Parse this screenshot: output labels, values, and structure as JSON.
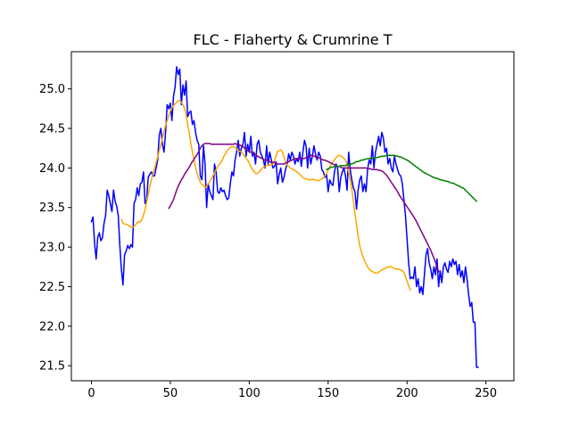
{
  "chart_data": {
    "type": "line",
    "title": "FLC - Flaherty & Crumrine T",
    "xlabel": "",
    "ylabel": "",
    "xlim": [
      -12.7,
      267.7
    ],
    "ylim": [
      21.31,
      25.47
    ],
    "xticks": [
      0,
      50,
      100,
      150,
      200,
      250
    ],
    "xtick_labels": [
      "0",
      "50",
      "100",
      "150",
      "200",
      "250"
    ],
    "yticks": [
      21.5,
      22.0,
      22.5,
      23.0,
      23.5,
      24.0,
      24.5,
      25.0
    ],
    "ytick_labels": [
      "21.5",
      "22.0",
      "22.5",
      "23.0",
      "23.5",
      "24.0",
      "24.5",
      "25.0"
    ],
    "grid": false,
    "legend": "none",
    "series": [
      {
        "color": "#0000ff",
        "x_start": 0,
        "values": [
          23.32,
          23.38,
          23.05,
          22.85,
          23.12,
          23.18,
          23.08,
          23.12,
          23.3,
          23.4,
          23.72,
          23.65,
          23.55,
          23.45,
          23.72,
          23.58,
          23.52,
          23.4,
          23.02,
          22.72,
          22.52,
          22.9,
          22.95,
          23.02,
          22.98,
          23.03,
          23.0,
          23.55,
          23.6,
          23.75,
          23.65,
          23.8,
          23.82,
          23.95,
          23.55,
          23.6,
          23.88,
          23.92,
          23.95,
          23.9,
          23.9,
          24.0,
          24.1,
          24.42,
          24.5,
          24.3,
          24.2,
          24.45,
          24.8,
          24.75,
          24.82,
          24.6,
          24.9,
          25.02,
          25.28,
          25.18,
          25.25,
          24.8,
          25.05,
          24.92,
          25.1,
          24.65,
          24.7,
          24.72,
          24.55,
          24.6,
          24.45,
          24.35,
          24.3,
          23.9,
          23.85,
          24.28,
          24.05,
          23.5,
          23.8,
          23.7,
          23.65,
          23.6,
          24.05,
          23.95,
          23.7,
          23.68,
          23.75,
          23.7,
          23.72,
          23.65,
          23.6,
          23.62,
          23.8,
          23.95,
          23.9,
          24.1,
          24.2,
          24.35,
          24.15,
          24.25,
          24.3,
          24.45,
          24.15,
          24.3,
          24.2,
          24.4,
          24.15,
          24.2,
          24.05,
          24.3,
          24.35,
          24.2,
          24.15,
          24.1,
          24.0,
          24.28,
          24.05,
          24.2,
          24.1,
          24.0,
          24.02,
          24.08,
          23.8,
          23.92,
          24.0,
          23.82,
          23.88,
          23.98,
          24.05,
          24.18,
          24.1,
          24.2,
          24.15,
          24.05,
          24.12,
          24.08,
          24.2,
          24.02,
          24.2,
          24.35,
          24.28,
          24.0,
          24.25,
          24.05,
          24.15,
          24.28,
          24.18,
          24.1,
          24.2,
          24.15,
          23.98,
          23.95,
          23.88,
          23.92,
          23.7,
          23.85,
          23.8,
          23.78,
          23.95,
          24.05,
          24.0,
          23.7,
          23.88,
          23.95,
          24.0,
          23.9,
          23.72,
          24.2,
          23.98,
          23.85,
          23.75,
          23.7,
          23.48,
          23.72,
          23.85,
          23.9,
          23.7,
          23.8,
          23.7,
          23.98,
          24.1,
          24.05,
          24.28,
          24.0,
          24.2,
          24.3,
          24.4,
          24.28,
          24.45,
          24.38,
          24.2,
          24.25,
          24.05,
          24.12,
          24.0,
          23.95,
          24.15,
          24.05,
          23.98,
          23.92,
          23.9,
          23.8,
          23.6,
          23.4,
          23.1,
          22.8,
          22.6,
          22.62,
          22.6,
          22.75,
          22.5,
          22.6,
          22.42,
          22.5,
          22.4,
          22.65,
          22.9,
          22.98,
          22.8,
          22.72,
          22.6,
          22.75,
          22.65,
          22.85,
          22.5,
          22.7,
          22.55,
          22.75,
          22.8,
          22.72,
          22.68,
          22.82,
          22.75,
          22.85,
          22.78,
          22.82,
          22.65,
          22.78,
          22.62,
          22.7,
          22.55,
          22.75,
          22.6,
          22.4,
          22.25,
          22.3,
          22.05,
          22.05,
          21.48,
          21.48
        ]
      },
      {
        "color": "#ffa500",
        "x_start": 19,
        "values": [
          23.35,
          23.3,
          23.29,
          23.29,
          23.28,
          23.27,
          23.25,
          23.25,
          23.26,
          23.28,
          23.31,
          23.32,
          23.32,
          23.35,
          23.4,
          23.48,
          23.57,
          23.67,
          23.76,
          23.85,
          23.93,
          23.99,
          24.07,
          24.14,
          24.22,
          24.29,
          24.38,
          24.46,
          24.54,
          24.6,
          24.66,
          24.72,
          24.76,
          24.79,
          24.81,
          24.83,
          24.85,
          24.85,
          24.83,
          24.8,
          24.76,
          24.67,
          24.55,
          24.44,
          24.31,
          24.2,
          24.1,
          24.01,
          23.93,
          23.87,
          23.82,
          23.79,
          23.78,
          23.75,
          23.77,
          23.8,
          23.83,
          23.86,
          23.9,
          23.94,
          23.98,
          24.02,
          24.04,
          24.07,
          24.1,
          24.15,
          24.18,
          24.22,
          24.24,
          24.26,
          24.27,
          24.27,
          24.26,
          24.24,
          24.22,
          24.21,
          24.2,
          24.18,
          24.15,
          24.12,
          24.1,
          24.06,
          24.02,
          23.98,
          23.96,
          23.93,
          23.93,
          23.94,
          23.97,
          23.99,
          24.01,
          24.02,
          24.03,
          24.03,
          24.04,
          24.04,
          24.05,
          24.1,
          24.15,
          24.21,
          24.22,
          24.23,
          24.2,
          24.14,
          24.08,
          24.04,
          24.02,
          24.0,
          23.99,
          23.98,
          23.97,
          23.95,
          23.94,
          23.92,
          23.9,
          23.88,
          23.87,
          23.86,
          23.86,
          23.85,
          23.85,
          23.86,
          23.85,
          23.85,
          23.84,
          23.84,
          23.85,
          23.86,
          23.88,
          23.9,
          23.93,
          23.97,
          24.01,
          24.05,
          24.08,
          24.1,
          24.13,
          24.15,
          24.16,
          24.15,
          24.14,
          24.12,
          24.1,
          24.05,
          23.95,
          23.85,
          23.73,
          23.58,
          23.42,
          23.28,
          23.14,
          23.02,
          22.94,
          22.88,
          22.83,
          22.79,
          22.75,
          22.72,
          22.7,
          22.69,
          22.68,
          22.67,
          22.67,
          22.68,
          22.7,
          22.71,
          22.72,
          22.73,
          22.74,
          22.75,
          22.75,
          22.75,
          22.74,
          22.73,
          22.72,
          22.72,
          22.72,
          22.71,
          22.7,
          22.68,
          22.63,
          22.57,
          22.51,
          22.46
        ]
      },
      {
        "color": "#800080",
        "x_start": 49,
        "values": [
          23.49,
          23.52,
          23.56,
          23.6,
          23.66,
          23.72,
          23.77,
          23.81,
          23.85,
          23.88,
          23.92,
          23.95,
          23.98,
          24.01,
          24.05,
          24.08,
          24.11,
          24.14,
          24.17,
          24.21,
          24.25,
          24.28,
          24.3,
          24.31,
          24.31,
          24.31,
          24.31,
          24.3,
          24.3,
          24.3,
          24.3,
          24.3,
          24.3,
          24.3,
          24.3,
          24.3,
          24.3,
          24.3,
          24.3,
          24.3,
          24.3,
          24.3,
          24.31,
          24.3,
          24.3,
          24.29,
          24.28,
          24.27,
          24.25,
          24.24,
          24.22,
          24.21,
          24.2,
          24.19,
          24.18,
          24.17,
          24.15,
          24.14,
          24.13,
          24.12,
          24.11,
          24.1,
          24.1,
          24.09,
          24.08,
          24.07,
          24.07,
          24.07,
          24.06,
          24.05,
          24.05,
          24.05,
          24.05,
          24.05,
          24.06,
          24.07,
          24.08,
          24.09,
          24.1,
          24.11,
          24.12,
          24.12,
          24.12,
          24.12,
          24.12,
          24.12,
          24.12,
          24.13,
          24.14,
          24.15,
          24.16,
          24.16,
          24.15,
          24.14,
          24.14,
          24.13,
          24.12,
          24.11,
          24.1,
          24.1,
          24.09,
          24.08,
          24.07,
          24.06,
          24.05,
          24.04,
          24.03,
          24.02,
          24.02,
          24.01,
          24.0,
          24.0,
          24.0,
          24.0,
          24.0,
          24.0,
          24.0,
          24.0,
          24.0,
          24.0,
          24.0,
          24.0,
          24.0,
          24.0,
          24.0,
          24.0,
          23.99,
          23.99,
          23.99,
          23.98,
          23.98,
          23.98,
          23.98,
          23.97,
          23.97,
          23.96,
          23.95,
          23.93,
          23.91,
          23.88,
          23.85,
          23.82,
          23.79,
          23.76,
          23.73,
          23.7,
          23.66,
          23.63,
          23.6,
          23.57,
          23.54,
          23.51,
          23.48,
          23.45,
          23.42,
          23.39,
          23.36,
          23.32,
          23.28,
          23.24,
          23.2,
          23.16,
          23.12,
          23.08,
          23.04,
          23.0,
          22.96,
          22.91,
          22.86,
          22.81,
          22.75,
          22.69
        ]
      },
      {
        "color": "#008000",
        "x_start": 149,
        "values": [
          23.98,
          23.99,
          24.0,
          24.01,
          24.01,
          24.02,
          24.02,
          24.02,
          24.02,
          24.03,
          24.03,
          24.03,
          24.03,
          24.04,
          24.04,
          24.05,
          24.05,
          24.06,
          24.07,
          24.08,
          24.08,
          24.09,
          24.1,
          24.1,
          24.11,
          24.11,
          24.12,
          24.12,
          24.12,
          24.12,
          24.13,
          24.13,
          24.13,
          24.14,
          24.14,
          24.15,
          24.15,
          24.15,
          24.16,
          24.16,
          24.16,
          24.16,
          24.16,
          24.16,
          24.15,
          24.15,
          24.14,
          24.14,
          24.13,
          24.12,
          24.11,
          24.1,
          24.09,
          24.07,
          24.06,
          24.04,
          24.03,
          24.01,
          24.0,
          23.98,
          23.97,
          23.95,
          23.94,
          23.93,
          23.92,
          23.91,
          23.9,
          23.89,
          23.88,
          23.87,
          23.87,
          23.86,
          23.85,
          23.85,
          23.84,
          23.84,
          23.83,
          23.83,
          23.82,
          23.81,
          23.81,
          23.8,
          23.79,
          23.78,
          23.77,
          23.76,
          23.75,
          23.74,
          23.72,
          23.7,
          23.68,
          23.66,
          23.64,
          23.62,
          23.6,
          23.58
        ]
      }
    ]
  }
}
